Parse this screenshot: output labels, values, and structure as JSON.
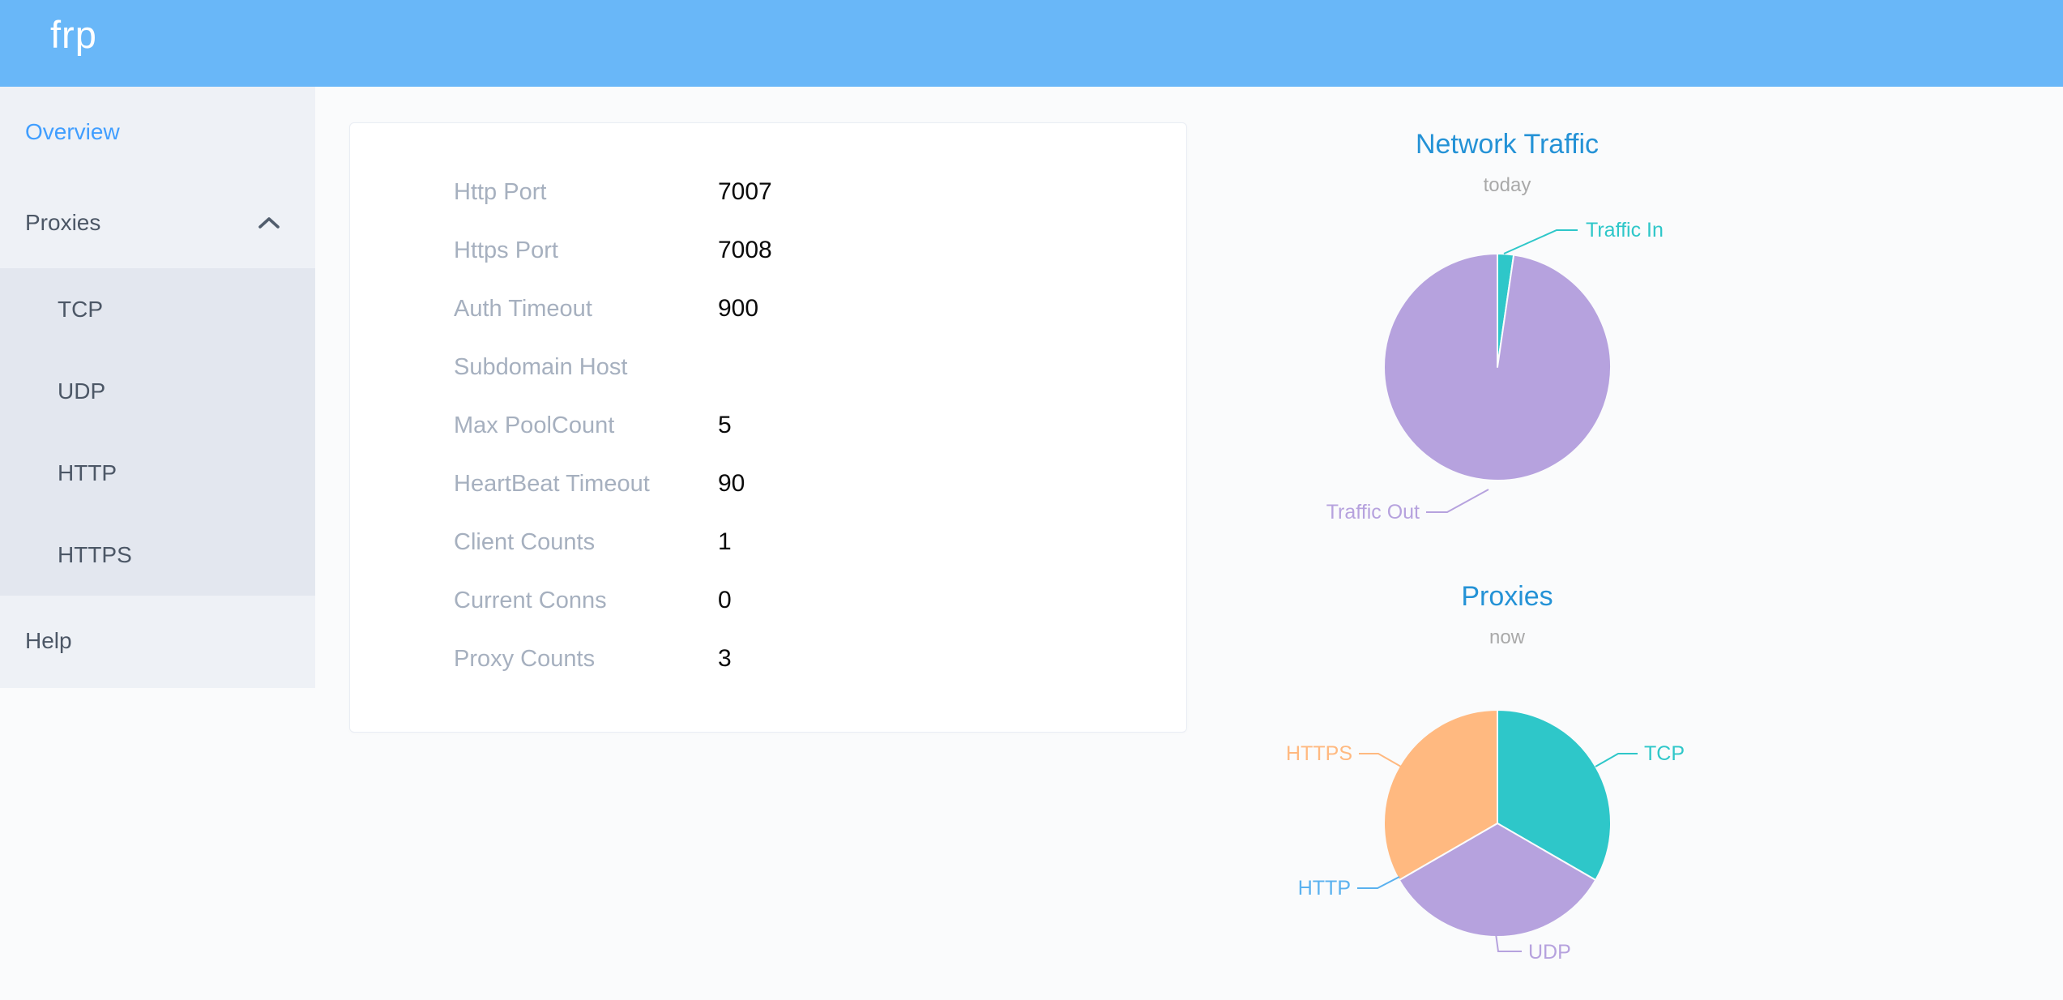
{
  "colors": {
    "header_bg": "#69b7f8",
    "active_menu": "#409eff",
    "menu_text": "#4c5766",
    "chart_title": "#2492d6",
    "series_teal": "#2ec7c9",
    "series_purple": "#b6a2de",
    "series_blue": "#5ab1ef",
    "series_orange": "#ffb980"
  },
  "header": {
    "logo": "frp"
  },
  "sidebar": {
    "overview": "Overview",
    "proxies": "Proxies",
    "proxies_children": [
      {
        "label": "TCP"
      },
      {
        "label": "UDP"
      },
      {
        "label": "HTTP"
      },
      {
        "label": "HTTPS"
      }
    ],
    "help": "Help"
  },
  "server_info": {
    "rows": [
      {
        "label": "Http Port",
        "value": "7007"
      },
      {
        "label": "Https Port",
        "value": "7008"
      },
      {
        "label": "Auth Timeout",
        "value": "900"
      },
      {
        "label": "Subdomain Host",
        "value": ""
      },
      {
        "label": "Max PoolCount",
        "value": "5"
      },
      {
        "label": "HeartBeat Timeout",
        "value": "90"
      },
      {
        "label": "Client Counts",
        "value": "1"
      },
      {
        "label": "Current Conns",
        "value": "0"
      },
      {
        "label": "Proxy Counts",
        "value": "3"
      }
    ]
  },
  "chart_data": [
    {
      "type": "pie",
      "title": "Network Traffic",
      "subtitle": "today",
      "legend_position": "callout-labels",
      "start_angle_deg": 0,
      "series": [
        {
          "name": "Traffic In",
          "value": 2.3,
          "color": "#2ec7c9"
        },
        {
          "name": "Traffic Out",
          "value": 97.7,
          "color": "#b6a2de"
        }
      ]
    },
    {
      "type": "pie",
      "title": "Proxies",
      "subtitle": "now",
      "legend_position": "callout-labels",
      "start_angle_deg": 0,
      "series": [
        {
          "name": "TCP",
          "value": 1,
          "color": "#2ec7c9"
        },
        {
          "name": "UDP",
          "value": 1,
          "color": "#b6a2de"
        },
        {
          "name": "HTTP",
          "value": 0,
          "color": "#5ab1ef"
        },
        {
          "name": "HTTPS",
          "value": 1,
          "color": "#ffb980"
        }
      ]
    }
  ]
}
